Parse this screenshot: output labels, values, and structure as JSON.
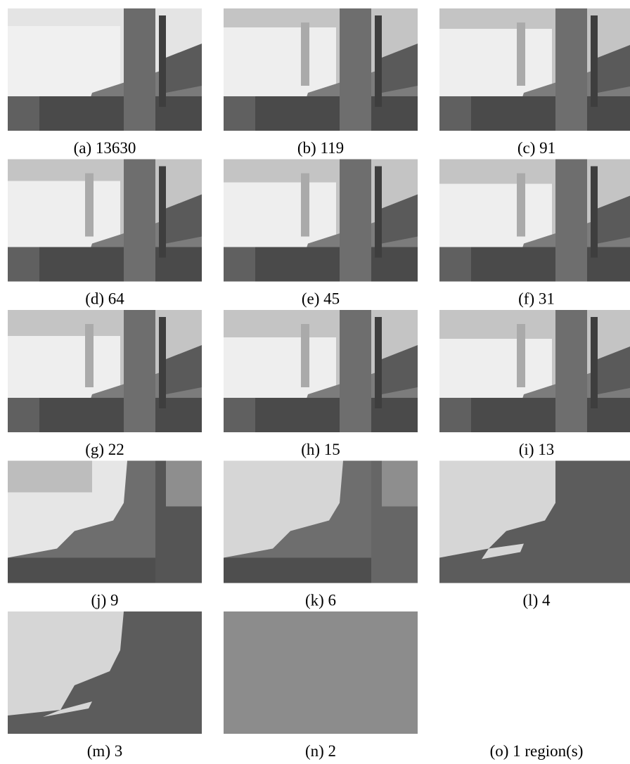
{
  "figure": {
    "panels": [
      {
        "caption": "(a) 13630"
      },
      {
        "caption": "(b) 119"
      },
      {
        "caption": "(c) 91"
      },
      {
        "caption": "(d) 64"
      },
      {
        "caption": "(e) 45"
      },
      {
        "caption": "(f) 31"
      },
      {
        "caption": "(g) 22"
      },
      {
        "caption": "(h) 15"
      },
      {
        "caption": "(i) 13"
      },
      {
        "caption": "(j) 9"
      },
      {
        "caption": "(k) 6"
      },
      {
        "caption": "(l) 4"
      },
      {
        "caption": "(m) 3"
      },
      {
        "caption": "(n) 2"
      },
      {
        "caption": "(o) 1 region(s)"
      }
    ]
  }
}
